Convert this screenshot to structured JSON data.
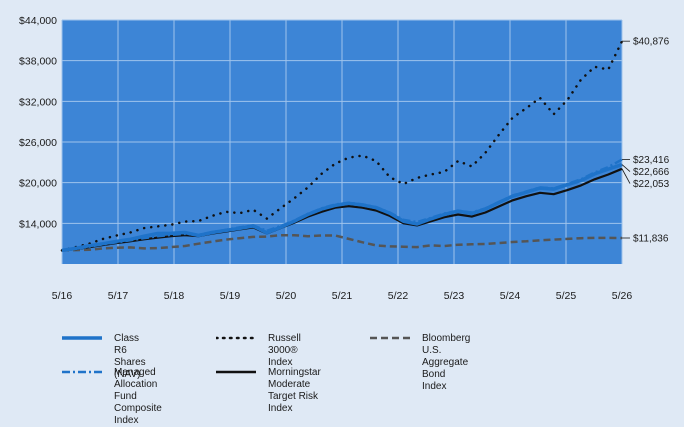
{
  "chart_data": {
    "type": "line",
    "ylim": [
      8000,
      44000
    ],
    "y_ticks": [
      "$14,000",
      "$20,000",
      "$26,000",
      "$32,000",
      "$38,000",
      "$44,000"
    ],
    "y_tick_values": [
      14000,
      20000,
      26000,
      32000,
      38000,
      44000
    ],
    "x_ticks": [
      "5/16",
      "5/17",
      "5/18",
      "5/19",
      "5/20",
      "5/21",
      "5/22",
      "5/23",
      "5/24",
      "5/25",
      "5/26"
    ],
    "grid": true,
    "legend": "bottom",
    "series": [
      {
        "name": "Class R6 Shares\n(NAV)",
        "color": "#1f73c9",
        "end_label": "$22,666",
        "values": [
          10000,
          10300,
          10700,
          11000,
          11350,
          11650,
          12100,
          12500,
          12550,
          12650,
          12200,
          12650,
          12950,
          13250,
          13600,
          12600,
          13400,
          14300,
          15300,
          16100,
          16650,
          16950,
          16700,
          16300,
          15500,
          14300,
          13900,
          14650,
          15300,
          15800,
          15450,
          16100,
          17100,
          18000,
          18600,
          19200,
          19050,
          19700,
          20300,
          21300,
          22000,
          22666
        ]
      },
      {
        "name": "Russell 3000® Index",
        "color": "#111111",
        "end_label": "$40,876",
        "values": [
          10000,
          10500,
          11000,
          11700,
          12200,
          12650,
          13300,
          13550,
          13800,
          14250,
          14350,
          15100,
          15700,
          15500,
          16000,
          14700,
          16200,
          17700,
          19300,
          21300,
          22800,
          23700,
          24000,
          23200,
          20800,
          19800,
          20700,
          21200,
          21600,
          23200,
          22400,
          24400,
          27100,
          29600,
          31000,
          32500,
          30100,
          32200,
          35200,
          37100,
          36700,
          40876
        ]
      },
      {
        "name": "Bloomberg U.S.\nAggregate Bond Index",
        "color": "#555555",
        "end_label": "$11,836",
        "values": [
          10000,
          10050,
          10100,
          10300,
          10400,
          10450,
          10300,
          10350,
          10500,
          10650,
          11000,
          11300,
          11600,
          11800,
          12000,
          12050,
          12250,
          12250,
          12100,
          12200,
          12200,
          11700,
          11200,
          10750,
          10600,
          10550,
          10500,
          10750,
          10650,
          10850,
          10900,
          10950,
          11100,
          11250,
          11350,
          11500,
          11600,
          11700,
          11800,
          11850,
          11850,
          11836
        ]
      },
      {
        "name": "Managed Allocation\nFund Composite Index",
        "color": "#1f73c9",
        "end_label": "$23,416",
        "values": [
          10000,
          10250,
          10550,
          10900,
          11200,
          11500,
          11800,
          12100,
          12300,
          12450,
          12300,
          12700,
          13050,
          13400,
          13700,
          12900,
          13600,
          14400,
          15400,
          16200,
          16800,
          17050,
          16800,
          16400,
          15600,
          14500,
          14200,
          14800,
          15450,
          15850,
          15600,
          16200,
          17150,
          18100,
          18700,
          19300,
          19150,
          19800,
          20500,
          21500,
          22300,
          23416
        ]
      },
      {
        "name": "Morningstar Moderate\nTarget Risk Index",
        "color": "#111111",
        "end_label": "$22,053",
        "values": [
          10000,
          10200,
          10500,
          10800,
          11100,
          11350,
          11650,
          11900,
          12100,
          12250,
          12100,
          12500,
          12800,
          13100,
          13400,
          12500,
          13300,
          14100,
          15000,
          15700,
          16300,
          16550,
          16300,
          15900,
          15100,
          14000,
          13700,
          14300,
          14900,
          15300,
          15000,
          15600,
          16500,
          17400,
          18000,
          18500,
          18300,
          18900,
          19600,
          20500,
          21200,
          22053
        ]
      }
    ]
  }
}
